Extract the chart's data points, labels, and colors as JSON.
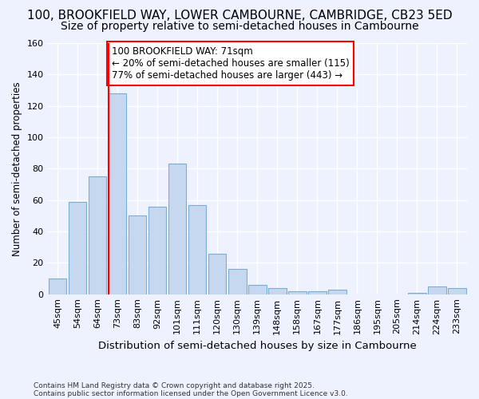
{
  "title1": "100, BROOKFIELD WAY, LOWER CAMBOURNE, CAMBRIDGE, CB23 5ED",
  "title2": "Size of property relative to semi-detached houses in Cambourne",
  "xlabel": "Distribution of semi-detached houses by size in Cambourne",
  "ylabel": "Number of semi-detached properties",
  "footnote1": "Contains HM Land Registry data © Crown copyright and database right 2025.",
  "footnote2": "Contains public sector information licensed under the Open Government Licence v3.0.",
  "annotation_title": "100 BROOKFIELD WAY: 71sqm",
  "annotation_line1": "← 20% of semi-detached houses are smaller (115)",
  "annotation_line2": "77% of semi-detached houses are larger (443) →",
  "bins": [
    "45sqm",
    "54sqm",
    "64sqm",
    "73sqm",
    "83sqm",
    "92sqm",
    "101sqm",
    "111sqm",
    "120sqm",
    "130sqm",
    "139sqm",
    "148sqm",
    "158sqm",
    "167sqm",
    "177sqm",
    "186sqm",
    "195sqm",
    "205sqm",
    "214sqm",
    "224sqm",
    "233sqm"
  ],
  "values": [
    10,
    59,
    75,
    128,
    50,
    56,
    83,
    57,
    26,
    16,
    6,
    4,
    2,
    2,
    3,
    0,
    0,
    0,
    1,
    5,
    4
  ],
  "bar_color": "#c5d8f0",
  "bar_edge_color": "#7aaed6",
  "vline_x_index": 3,
  "vline_color": "red",
  "ylim": [
    0,
    160
  ],
  "yticks": [
    0,
    20,
    40,
    60,
    80,
    100,
    120,
    140,
    160
  ],
  "annotation_box_color": "red",
  "bg_color": "#eef2ff",
  "grid_color": "#ffffff",
  "title_fontsize": 11,
  "subtitle_fontsize": 10,
  "annotation_fontsize": 8.5
}
